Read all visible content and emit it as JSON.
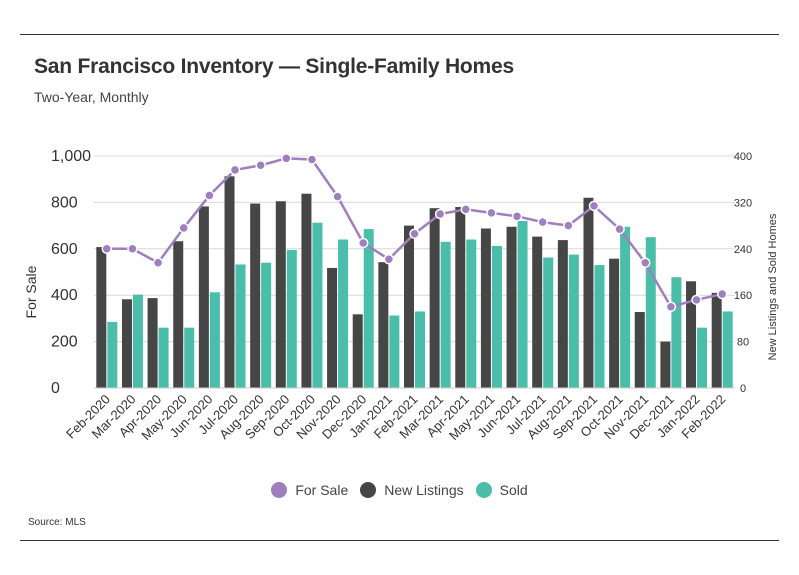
{
  "header": {
    "title": "San Francisco Inventory — Single-Family Homes",
    "subtitle": "Two-Year, Monthly"
  },
  "footer": {
    "source": "Source:  MLS"
  },
  "colors": {
    "for_sale": "#9f7fbd",
    "new_listings": "#464646",
    "sold": "#4bbeaa",
    "grid": "#d9d9d9",
    "text": "#333333"
  },
  "chart_data": {
    "type": "bar",
    "title": "San Francisco Inventory — Single-Family Homes",
    "subtitle": "Two-Year, Monthly",
    "categories": [
      "Feb-2020",
      "Mar-2020",
      "Apr-2020",
      "May-2020",
      "Jun-2020",
      "Jul-2020",
      "Aug-2020",
      "Sep-2020",
      "Oct-2020",
      "Nov-2020",
      "Dec-2020",
      "Jan-2021",
      "Feb-2021",
      "Mar-2021",
      "Apr-2021",
      "May-2021",
      "Jun-2021",
      "Jul-2021",
      "Aug-2021",
      "Sep-2021",
      "Oct-2021",
      "Nov-2021",
      "Dec-2021",
      "Jan-2022",
      "Feb-2022"
    ],
    "y_left": {
      "label": "For Sale",
      "ylim": [
        0,
        1000
      ],
      "ticks": [
        "0",
        "200",
        "400",
        "600",
        "800",
        "1,000"
      ]
    },
    "y_right": {
      "label": "New Listings and Sold Homes",
      "ylim": [
        0,
        400
      ],
      "ticks": [
        "0",
        "80",
        "160",
        "240",
        "320",
        "400"
      ]
    },
    "grid": true,
    "legend_position": "bottom",
    "series": [
      {
        "name": "For Sale",
        "type": "line",
        "axis": "left",
        "values": [
          600,
          600,
          540,
          690,
          830,
          940,
          960,
          990,
          985,
          825,
          625,
          555,
          665,
          750,
          770,
          755,
          740,
          715,
          700,
          785,
          685,
          540,
          350,
          380,
          405
        ]
      },
      {
        "name": "New Listings",
        "type": "bar",
        "axis": "right",
        "values": [
          243,
          153,
          155,
          253,
          313,
          365,
          318,
          322,
          335,
          207,
          127,
          217,
          280,
          310,
          312,
          275,
          278,
          261,
          255,
          328,
          223,
          131,
          80,
          184,
          164
        ]
      },
      {
        "name": "Sold",
        "type": "bar",
        "axis": "right",
        "values": [
          114,
          161,
          104,
          104,
          165,
          213,
          216,
          238,
          285,
          256,
          274,
          125,
          132,
          252,
          256,
          245,
          288,
          225,
          230,
          212,
          278,
          260,
          191,
          104,
          132
        ]
      }
    ]
  }
}
